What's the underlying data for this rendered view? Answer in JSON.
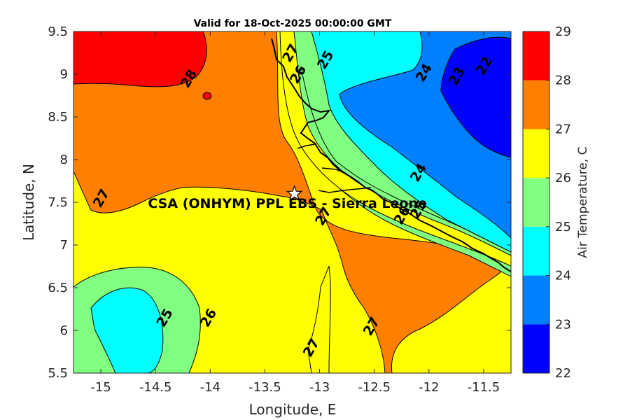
{
  "chart_data": {
    "type": "filled-contour-map",
    "title": "Valid for 18-Oct-2025 00:00:00 GMT",
    "xlabel": "Longitude, E",
    "ylabel": "Latitude, N",
    "xlim": [
      -15.25,
      -11.25
    ],
    "ylim": [
      5.5,
      9.5
    ],
    "x_ticks": [
      -15,
      -14.5,
      -14,
      -13.5,
      -13,
      -12.5,
      -12,
      -11.5
    ],
    "x_tick_labels": [
      "-15",
      "-14.5",
      "-14",
      "-13.5",
      "-13",
      "-12.5",
      "-12",
      "-11.5"
    ],
    "y_ticks": [
      5.5,
      6,
      6.5,
      7,
      7.5,
      8,
      8.5,
      9,
      9.5
    ],
    "y_tick_labels": [
      "5.5",
      "6",
      "6.5",
      "7",
      "7.5",
      "8",
      "8.5",
      "9",
      "9.5"
    ],
    "colorbar": {
      "label": "Air Temperature, C",
      "levels": [
        22,
        23,
        24,
        25,
        26,
        27,
        28,
        29
      ],
      "level_labels": [
        "22",
        "23",
        "24",
        "25",
        "26",
        "27",
        "28",
        "29"
      ],
      "colors": [
        "#0000ff",
        "#0080ff",
        "#00ffff",
        "#80ff80",
        "#ffff00",
        "#ff8000",
        "#ff0000",
        "#800000"
      ]
    },
    "contour_labels": [
      {
        "text": "28",
        "lon": -14.2,
        "lat": 8.95
      },
      {
        "text": "27",
        "lon": -15.0,
        "lat": 7.55
      },
      {
        "text": "27",
        "lon": -12.97,
        "lat": 7.34
      },
      {
        "text": "27",
        "lon": -12.53,
        "lat": 6.05
      },
      {
        "text": "27",
        "lon": -13.08,
        "lat": 5.8
      },
      {
        "text": "26",
        "lon": -14.02,
        "lat": 6.15
      },
      {
        "text": "26",
        "lon": -13.2,
        "lat": 9.0
      },
      {
        "text": "26",
        "lon": -12.25,
        "lat": 7.35
      },
      {
        "text": "25",
        "lon": -14.42,
        "lat": 6.15
      },
      {
        "text": "25",
        "lon": -12.95,
        "lat": 9.17
      },
      {
        "text": "25",
        "lon": -12.1,
        "lat": 7.42
      },
      {
        "text": "24",
        "lon": -12.05,
        "lat": 9.02
      },
      {
        "text": "24",
        "lon": -12.1,
        "lat": 7.85
      },
      {
        "text": "23",
        "lon": -11.75,
        "lat": 8.98
      },
      {
        "text": "22",
        "lon": -11.5,
        "lat": 9.1
      },
      {
        "text": "27",
        "lon": -13.27,
        "lat": 9.25
      }
    ],
    "site": {
      "name": "CSA (ONHYM) PPL EBS  - Sierra Leone",
      "lon": -13.23,
      "lat": 7.6
    }
  }
}
